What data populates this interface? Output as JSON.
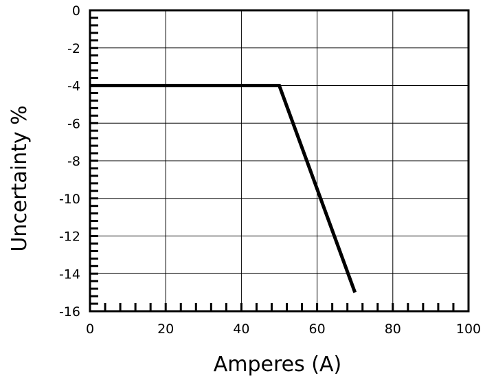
{
  "chart_data": {
    "type": "line",
    "title": "",
    "xlabel": "Amperes (A)",
    "ylabel": "Uncertainty %",
    "xlim": [
      0,
      100
    ],
    "ylim": [
      -16,
      0
    ],
    "x_ticks": [
      "0",
      "20",
      "40",
      "60",
      "80",
      "100"
    ],
    "y_ticks": [
      "0",
      "-2",
      "-4",
      "-6",
      "-8",
      "-10",
      "-12",
      "-14",
      "-16"
    ],
    "grid": true,
    "series": [
      {
        "x": [
          0,
          50,
          70
        ],
        "y": [
          -4,
          -4,
          -15
        ]
      }
    ],
    "colors": {
      "line": "#000000",
      "grid": "#000000",
      "background": "#ffffff"
    }
  }
}
